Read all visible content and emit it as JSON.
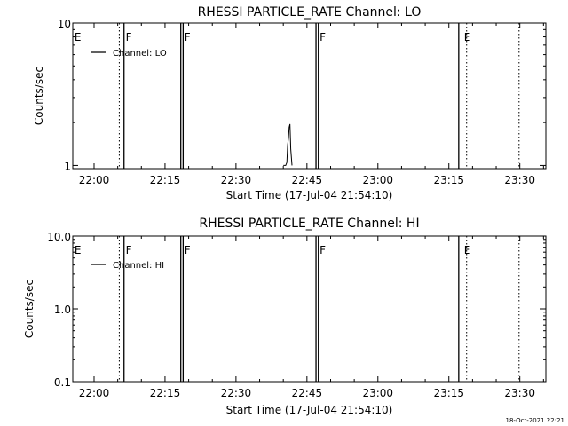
{
  "footer_timestamp": "18-Oct-2021 22:21",
  "chart_data": [
    {
      "type": "line",
      "title": "RHESSI PARTICLE_RATE Channel: LO",
      "xlabel": "Start Time (17-Jul-04 21:54:10)",
      "ylabel": "Counts/sec",
      "x_unit": "time of day (HH:MM)",
      "xlim": [
        "21:55:30",
        "23:35:30"
      ],
      "xticks": [
        "22:00",
        "22:15",
        "22:30",
        "22:45",
        "23:00",
        "23:15",
        "23:30"
      ],
      "yscale": "log",
      "ylim": [
        0.95,
        10
      ],
      "yticks": [
        "1",
        "10"
      ],
      "legend": {
        "position": "top-left",
        "entries": [
          "Channel: LO"
        ]
      },
      "series": [
        {
          "name": "Channel: LO",
          "x": [
            "22:40:00",
            "22:40:30",
            "22:40:45",
            "22:40:55",
            "22:41:05",
            "22:41:15",
            "22:41:25",
            "22:41:35",
            "22:41:50"
          ],
          "y": [
            1,
            1,
            1.05,
            1.4,
            1.55,
            1.85,
            1.95,
            1.3,
            1
          ]
        }
      ],
      "solid_lines": [
        "22:06:20",
        "22:18:20",
        "22:18:50",
        "22:46:55",
        "22:47:25",
        "23:17:05"
      ],
      "dotted_lines": [
        "22:05:20",
        "23:18:45",
        "23:29:50"
      ],
      "flags": [
        {
          "label": "E",
          "x": "21:55:40"
        },
        {
          "label": "F",
          "x": "22:06:30"
        },
        {
          "label": "F",
          "x": "22:18:55"
        },
        {
          "label": "F",
          "x": "22:47:30"
        },
        {
          "label": "E",
          "x": "23:18:00"
        }
      ]
    },
    {
      "type": "line",
      "title": "RHESSI PARTICLE_RATE Channel: HI",
      "xlabel": "Start Time (17-Jul-04 21:54:10)",
      "ylabel": "Counts/sec",
      "x_unit": "time of day (HH:MM)",
      "xlim": [
        "21:55:30",
        "23:35:30"
      ],
      "xticks": [
        "22:00",
        "22:15",
        "22:30",
        "22:45",
        "23:00",
        "23:15",
        "23:30"
      ],
      "yscale": "log",
      "ylim": [
        0.1,
        10
      ],
      "yticks": [
        "0.1",
        "1.0",
        "10.0"
      ],
      "legend": {
        "position": "top-left",
        "entries": [
          "Channel: HI"
        ]
      },
      "series": [
        {
          "name": "Channel: HI",
          "x": [],
          "y": []
        }
      ],
      "solid_lines": [
        "22:06:20",
        "22:18:20",
        "22:18:50",
        "22:46:55",
        "22:47:25",
        "23:17:05"
      ],
      "dotted_lines": [
        "22:05:20",
        "23:18:45",
        "23:29:50"
      ],
      "flags": [
        {
          "label": "E",
          "x": "21:55:40"
        },
        {
          "label": "F",
          "x": "22:06:30"
        },
        {
          "label": "F",
          "x": "22:18:55"
        },
        {
          "label": "F",
          "x": "22:47:30"
        },
        {
          "label": "E",
          "x": "23:18:00"
        }
      ]
    }
  ]
}
